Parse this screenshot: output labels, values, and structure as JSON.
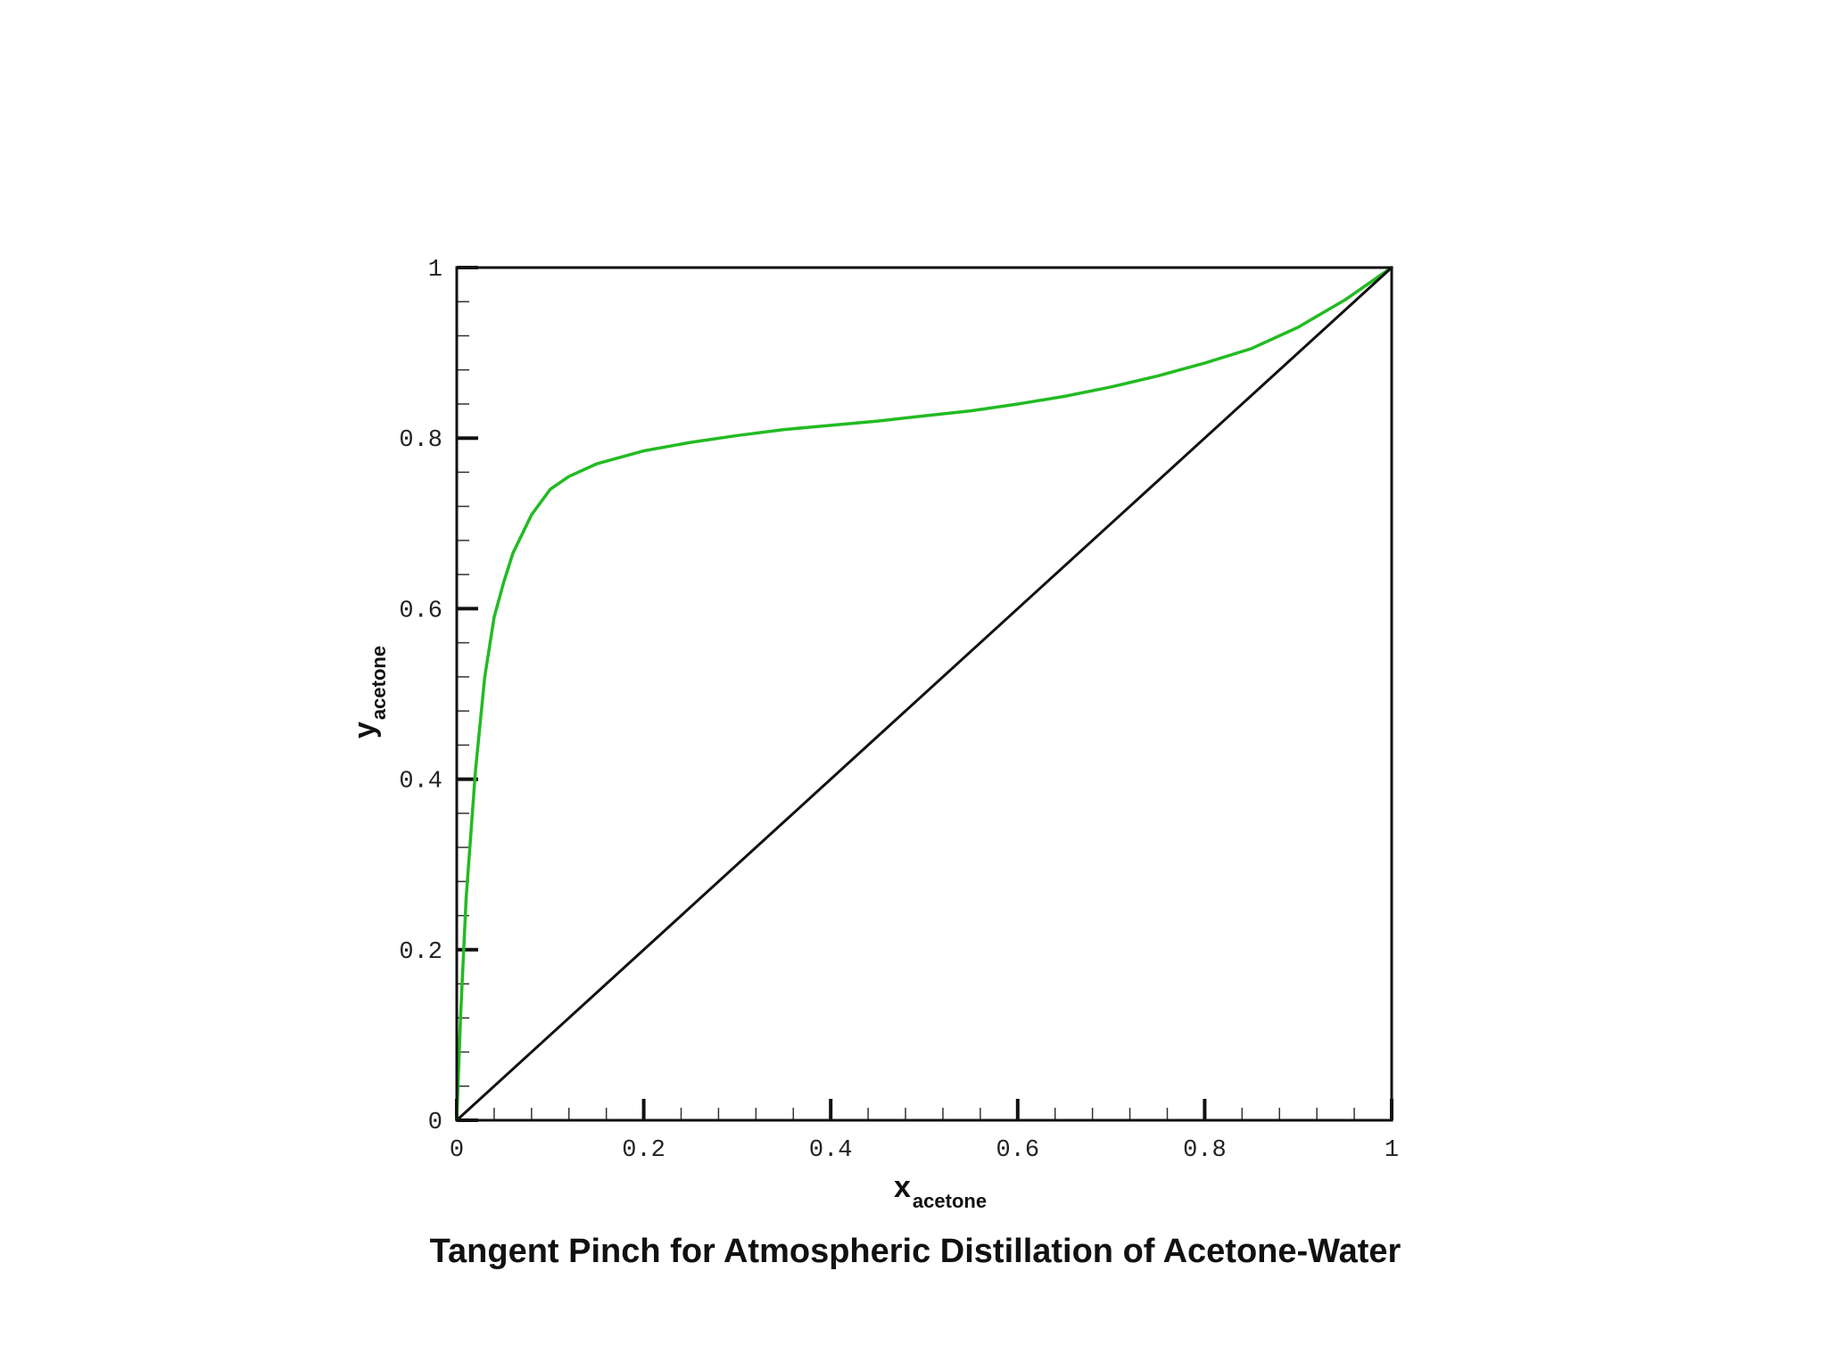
{
  "chart_data": {
    "type": "line",
    "title": "Tangent Pinch for Atmospheric Distillation of Acetone-Water",
    "xlabel": {
      "main": "x",
      "sub": "acetone"
    },
    "ylabel": {
      "main": "y",
      "sub": "acetone"
    },
    "xlim": [
      0,
      1
    ],
    "ylim": [
      0,
      1
    ],
    "x_ticks": [
      {
        "value": 0,
        "label": "0"
      },
      {
        "value": 0.2,
        "label": "0.2"
      },
      {
        "value": 0.4,
        "label": "0.4"
      },
      {
        "value": 0.6,
        "label": "0.6"
      },
      {
        "value": 0.8,
        "label": "0.8"
      },
      {
        "value": 1,
        "label": "1"
      }
    ],
    "y_ticks": [
      {
        "value": 0,
        "label": "0"
      },
      {
        "value": 0.2,
        "label": "0.2"
      },
      {
        "value": 0.4,
        "label": "0.4"
      },
      {
        "value": 0.6,
        "label": "0.6"
      },
      {
        "value": 0.8,
        "label": "0.8"
      },
      {
        "value": 1,
        "label": "1"
      }
    ],
    "minor_tick_step": 0.04,
    "grid": false,
    "series": [
      {
        "color": "#22bb22",
        "x": [
          0,
          0.004,
          0.01,
          0.02,
          0.03,
          0.04,
          0.05,
          0.06,
          0.08,
          0.1,
          0.12,
          0.15,
          0.2,
          0.25,
          0.3,
          0.35,
          0.4,
          0.45,
          0.5,
          0.55,
          0.6,
          0.65,
          0.7,
          0.75,
          0.8,
          0.85,
          0.9,
          0.95,
          1.0
        ],
        "y": [
          0,
          0.12,
          0.26,
          0.41,
          0.52,
          0.59,
          0.63,
          0.665,
          0.71,
          0.74,
          0.755,
          0.77,
          0.785,
          0.795,
          0.803,
          0.81,
          0.815,
          0.82,
          0.826,
          0.832,
          0.84,
          0.849,
          0.86,
          0.873,
          0.888,
          0.905,
          0.93,
          0.962,
          1.0
        ]
      },
      {
        "color": "#111111",
        "x": [
          0,
          1
        ],
        "y": [
          0,
          1
        ]
      }
    ]
  }
}
